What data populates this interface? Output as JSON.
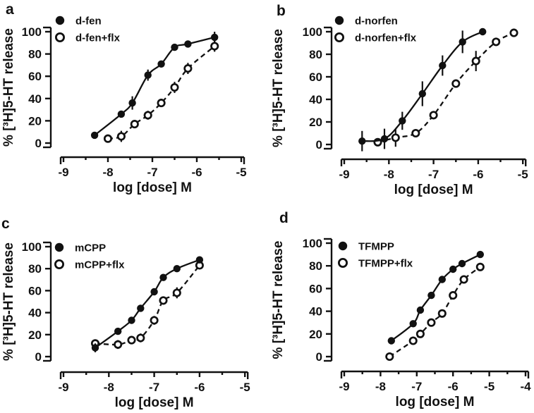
{
  "figure": {
    "background": "#ffffff",
    "ink": "#111111"
  },
  "chart_data": [
    {
      "panel_label": "a",
      "type": "scatter",
      "title": "",
      "xlabel": "log [dose] M",
      "ylabel": "% [³H]5-HT release",
      "xlim": [
        -9,
        -5
      ],
      "ylim": [
        0,
        100
      ],
      "xticks": [
        -9,
        -8,
        -7,
        -6,
        -5
      ],
      "yticks": [
        0,
        20,
        40,
        60,
        80,
        100
      ],
      "minor_tick_step": 0.5,
      "grid": false,
      "legend_position": "top-left",
      "series": [
        {
          "name": "d-fen",
          "marker": "filled-circle",
          "linestyle": "solid",
          "x": [
            -8.3,
            -7.7,
            -7.45,
            -7.1,
            -6.8,
            -6.5,
            -6.2,
            -5.6
          ],
          "y": [
            7,
            26,
            36,
            61,
            71,
            86,
            89,
            95
          ],
          "err": [
            0,
            0,
            6,
            5,
            0,
            0,
            0,
            5
          ]
        },
        {
          "name": "d-fen+flx",
          "marker": "open-circle",
          "linestyle": "dashed",
          "x": [
            -8.0,
            -7.7,
            -7.4,
            -7.1,
            -6.8,
            -6.5,
            -6.2,
            -5.6
          ],
          "y": [
            4,
            6,
            17,
            25,
            36,
            50,
            67,
            87
          ],
          "err": [
            3,
            5,
            3,
            4,
            3,
            5,
            5,
            5
          ]
        }
      ]
    },
    {
      "panel_label": "b",
      "type": "scatter",
      "title": "",
      "xlabel": "log [dose] M",
      "ylabel": "% [³H]5-HT release",
      "xlim": [
        -9,
        -5
      ],
      "ylim": [
        0,
        100
      ],
      "xticks": [
        -9,
        -8,
        -7,
        -6,
        -5
      ],
      "yticks": [
        0,
        20,
        40,
        60,
        80,
        100
      ],
      "minor_tick_step": 0.5,
      "grid": false,
      "legend_position": "top-left",
      "series": [
        {
          "name": "d-norfen",
          "marker": "filled-circle",
          "linestyle": "solid",
          "x": [
            -8.6,
            -8.1,
            -7.7,
            -7.25,
            -6.8,
            -6.35,
            -5.9
          ],
          "y": [
            3,
            5,
            21,
            45,
            70,
            91,
            100
          ],
          "err": [
            9,
            9,
            8,
            11,
            9,
            10,
            2
          ]
        },
        {
          "name": "d-norfen+flx",
          "marker": "open-circle",
          "linestyle": "dashed",
          "x": [
            -8.25,
            -7.85,
            -7.4,
            -7.0,
            -6.5,
            -6.05,
            -5.6,
            -5.2
          ],
          "y": [
            2,
            6,
            10,
            26,
            54,
            74,
            91,
            99
          ],
          "err": [
            2,
            8,
            3,
            3,
            3,
            9,
            3,
            2
          ]
        }
      ]
    },
    {
      "panel_label": "c",
      "type": "scatter",
      "title": "",
      "xlabel": "log [dose] M",
      "ylabel": "% [³H]5-HT release",
      "xlim": [
        -9,
        -5
      ],
      "ylim": [
        0,
        100
      ],
      "xticks": [
        -9,
        -8,
        -7,
        -6,
        -5
      ],
      "yticks": [
        0,
        20,
        40,
        60,
        80,
        100
      ],
      "minor_tick_step": 0.5,
      "grid": false,
      "legend_position": "top-left",
      "series": [
        {
          "name": "mCPP",
          "marker": "filled-circle",
          "linestyle": "solid",
          "x": [
            -8.3,
            -7.8,
            -7.5,
            -7.3,
            -7.0,
            -6.8,
            -6.5,
            -6.0
          ],
          "y": [
            8,
            23,
            33,
            44,
            59,
            72,
            80,
            88
          ],
          "err": [
            4,
            0,
            0,
            3,
            0,
            0,
            0,
            3
          ]
        },
        {
          "name": "mCPP+flx",
          "marker": "open-circle",
          "linestyle": "dashed",
          "x": [
            -8.3,
            -7.8,
            -7.5,
            -7.3,
            -7.0,
            -6.8,
            -6.5,
            -6.0
          ],
          "y": [
            12,
            11,
            15,
            17,
            33,
            51,
            58,
            83
          ],
          "err": [
            3,
            4,
            3,
            4,
            4,
            3,
            5,
            3
          ]
        }
      ]
    },
    {
      "panel_label": "d",
      "type": "scatter",
      "title": "",
      "xlabel": "log [dose] M",
      "ylabel": "% [³H]5-HT release",
      "xlim": [
        -9,
        -4
      ],
      "ylim": [
        0,
        100
      ],
      "xticks": [
        -9,
        -8,
        -7,
        -6,
        -5,
        -4
      ],
      "yticks": [
        0,
        20,
        40,
        60,
        80,
        100
      ],
      "minor_tick_step": 0.5,
      "grid": false,
      "legend_position": "top-left",
      "series": [
        {
          "name": "TFMPP",
          "marker": "filled-circle",
          "linestyle": "solid",
          "x": [
            -7.7,
            -7.1,
            -6.9,
            -6.6,
            -6.3,
            -6.0,
            -5.75,
            -5.25
          ],
          "y": [
            14,
            29,
            41,
            54,
            68,
            77,
            82,
            90
          ],
          "err": [
            0,
            0,
            0,
            0,
            0,
            0,
            0,
            0
          ]
        },
        {
          "name": "TFMPP+flx",
          "marker": "open-circle",
          "linestyle": "dashed",
          "x": [
            -7.75,
            -7.1,
            -6.9,
            -6.6,
            -6.3,
            -6.0,
            -5.7,
            -5.25
          ],
          "y": [
            0,
            14,
            20,
            30,
            38,
            54,
            68,
            79
          ],
          "err": [
            0,
            0,
            0,
            0,
            0,
            0,
            0,
            0
          ]
        }
      ]
    }
  ]
}
